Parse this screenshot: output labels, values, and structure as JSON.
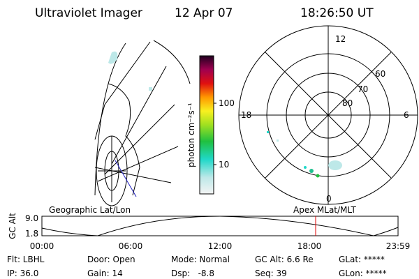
{
  "header": {
    "instrument": "Ultraviolet Imager",
    "date": "12 Apr 07",
    "time": "18:26:50 UT"
  },
  "colorbar": {
    "label": "photon cm⁻²s⁻¹",
    "ticks": [
      "100",
      "10"
    ]
  },
  "polar_plot": {
    "mlt_labels": [
      "12",
      "18",
      "6",
      "0"
    ],
    "mlat_labels": [
      "60",
      "70",
      "80"
    ]
  },
  "orbit_strip": {
    "left_title": "Geographic Lat/Lon",
    "right_title": "Apex MLat/MLT",
    "axis_label": "GC Alt",
    "y_labels": [
      "9.0",
      "1.8"
    ],
    "x_labels": [
      "00:00",
      "06:00",
      "12:00",
      "18:00",
      "23:59"
    ]
  },
  "status": {
    "row1": [
      "Flt: LBHL",
      "Door: Open",
      "Mode: Normal",
      "GC Alt: 6.6 Re",
      "GLat: *****"
    ],
    "row2": [
      "IP: 36.0",
      "Gain: 14",
      "Dsp:   -8.8",
      "Seq: 39",
      "GLon: *****"
    ]
  }
}
